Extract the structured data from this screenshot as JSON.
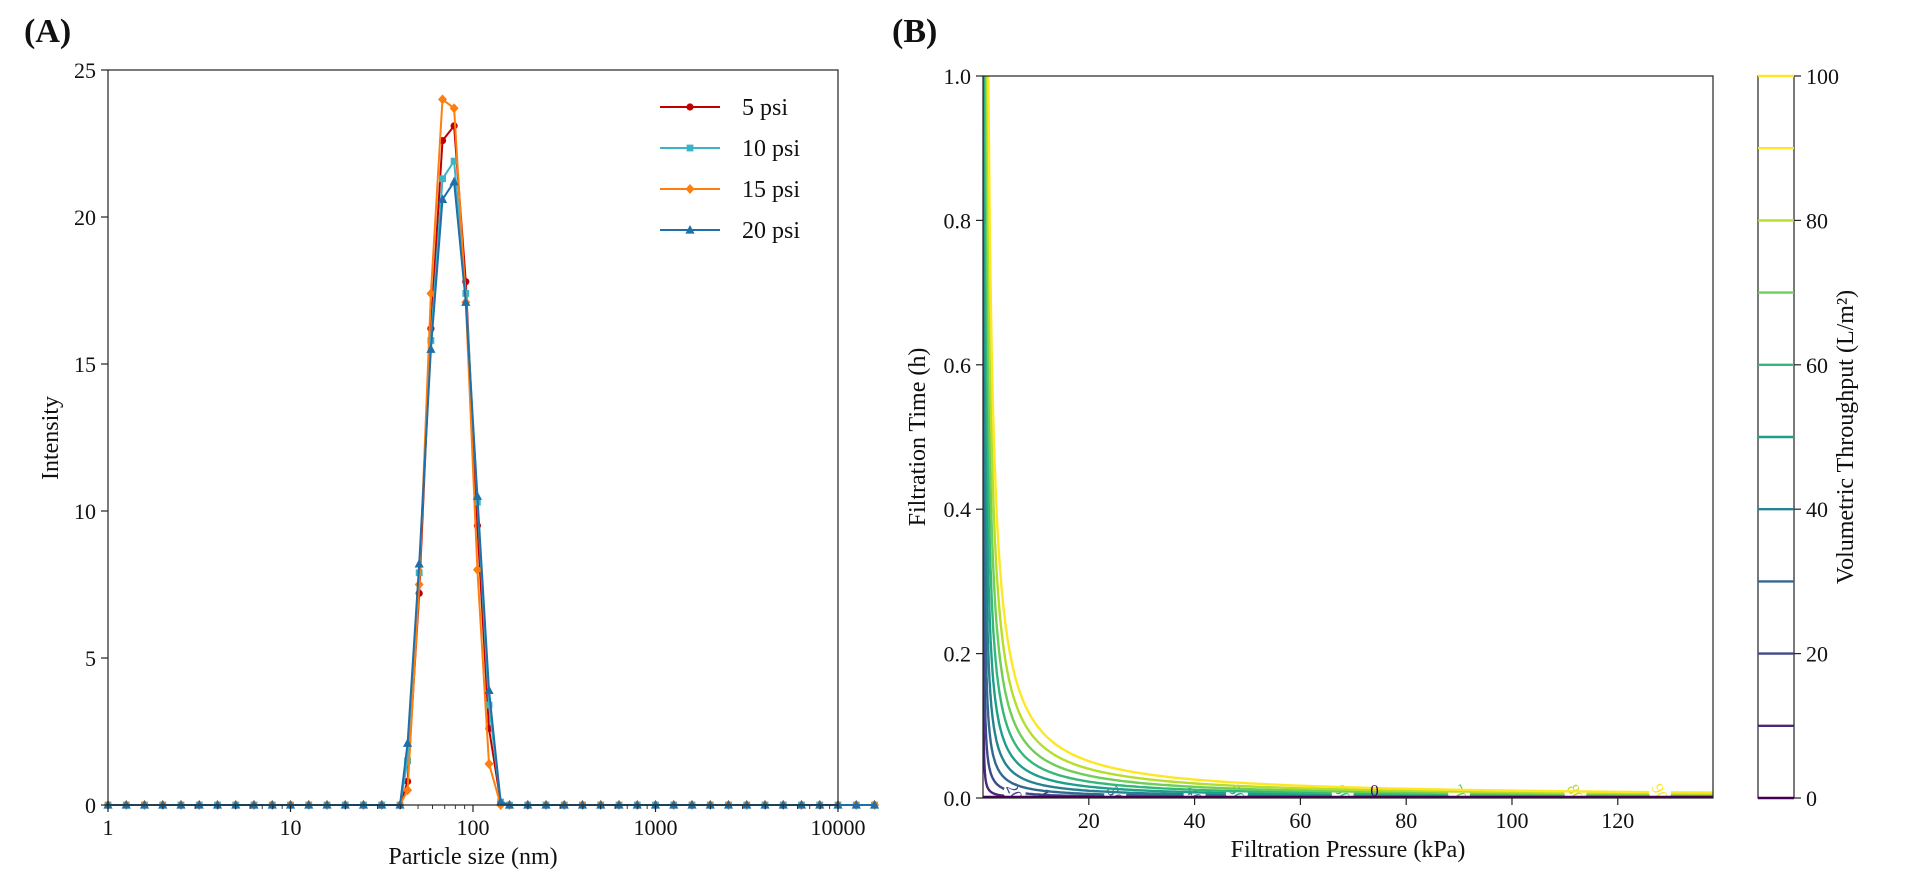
{
  "panels": {
    "a": {
      "label": "(A)"
    },
    "b": {
      "label": "(B)"
    }
  },
  "chart_data": [
    {
      "type": "line",
      "panel": "(A)",
      "xlabel": "Particle size (nm)",
      "ylabel": "Intensity",
      "xscale": "log",
      "xlim": [
        1,
        10000
      ],
      "ylim": [
        0,
        25
      ],
      "xticks": [
        "1",
        "10",
        "100",
        "1000",
        "10000"
      ],
      "yticks": [
        "0",
        "5",
        "10",
        "15",
        "20",
        "25"
      ],
      "grid": false,
      "legend_position": "top-right",
      "series": [
        {
          "name": "5 psi",
          "color": "#c00000",
          "marker": "circle",
          "peak": {
            "x": [
              43.8,
              50.7,
              58.8,
              68.1,
              78.8,
              91.3,
              105.7,
              122.4,
              141.8
            ],
            "y": [
              0.8,
              7.2,
              16.2,
              22.6,
              23.1,
              17.8,
              9.5,
              2.6,
              0.1
            ]
          }
        },
        {
          "name": "10 psi",
          "color": "#3cb4c8",
          "marker": "square",
          "peak": {
            "x": [
              43.8,
              50.7,
              58.8,
              68.1,
              78.8,
              91.3,
              105.7,
              122.4,
              141.8
            ],
            "y": [
              1.5,
              7.9,
              15.8,
              21.3,
              21.9,
              17.4,
              10.3,
              3.4,
              0.1
            ]
          }
        },
        {
          "name": "15 psi",
          "color": "#ff7f0e",
          "marker": "diamond",
          "peak": {
            "x": [
              43.8,
              50.7,
              58.8,
              68.1,
              78.8,
              91.3,
              105.7,
              122.4,
              141.8
            ],
            "y": [
              0.5,
              7.5,
              17.4,
              24.0,
              23.7,
              17.1,
              8.0,
              1.4,
              0.0
            ]
          }
        },
        {
          "name": "20 psi",
          "color": "#1f6fa8",
          "marker": "triangle",
          "peak": {
            "x": [
              43.8,
              50.7,
              58.8,
              68.1,
              78.8,
              91.3,
              105.7,
              122.4,
              141.8
            ],
            "y": [
              2.1,
              8.2,
              15.5,
              20.6,
              21.2,
              17.1,
              10.5,
              3.9,
              0.1
            ]
          }
        }
      ],
      "baseline_value": 0
    },
    {
      "type": "contour",
      "panel": "(B)",
      "xlabel": "Filtration Pressure (kPa)",
      "ylabel": "Filtration Time (h)",
      "colorbar_label": "Volumetric Throughput (L/m²)",
      "xlim": [
        0,
        138
      ],
      "ylim": [
        0,
        1.0
      ],
      "xticks": [
        "20",
        "40",
        "60",
        "80",
        "100",
        "120"
      ],
      "yticks": [
        "0.0",
        "0.2",
        "0.4",
        "0.6",
        "0.8",
        "1.0"
      ],
      "colorbar_ticks": [
        "0",
        "20",
        "40",
        "60",
        "80",
        "100"
      ],
      "colormap": "viridis",
      "levels": [
        0,
        10,
        20,
        30,
        40,
        50,
        60,
        70,
        80,
        90,
        100
      ],
      "level_colors": [
        "#440154",
        "#482878",
        "#3e4989",
        "#31688e",
        "#26828e",
        "#1f9e89",
        "#35b779",
        "#6ece58",
        "#b5de2b",
        "#fde725",
        "#fde725"
      ],
      "contour_labels": [
        "10",
        "20",
        "30",
        "40",
        "50",
        "60",
        "70",
        "80",
        "90",
        "0"
      ],
      "relation": "throughput = 8.9 * sqrt(pressure_kPa * time_h / 0.01)"
    }
  ]
}
